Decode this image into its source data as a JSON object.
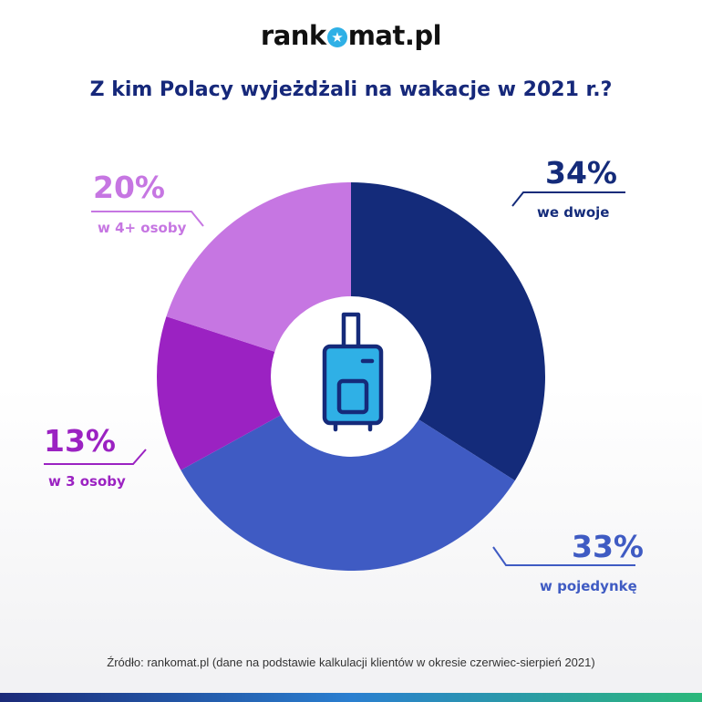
{
  "brand": {
    "prefix": "rank",
    "suffix": "mat.pl",
    "logo_icon": "star-icon"
  },
  "title": "Z kim Polacy wyjeżdżali na wakacje w 2021 r.?",
  "chart_data": {
    "type": "pie",
    "title": "Z kim Polacy wyjeżdżali na wakacje w 2021 r.?",
    "donut": true,
    "center_icon": "suitcase-icon",
    "slices": [
      {
        "label": "we dwoje",
        "value": 34,
        "value_label": "34%",
        "color": "#142b7a"
      },
      {
        "label": "w pojedynkę",
        "value": 33,
        "value_label": "33%",
        "color": "#3f5bc3"
      },
      {
        "label": "w 3 osoby",
        "value": 13,
        "value_label": "13%",
        "color": "#9b22c2"
      },
      {
        "label": "w 4+ osoby",
        "value": 20,
        "value_label": "20%",
        "color": "#c676e2"
      }
    ]
  },
  "source": "Źródło: rankomat.pl (dane na podstawie kalkulacji klientów w okresie czerwiec-sierpień 2021)"
}
